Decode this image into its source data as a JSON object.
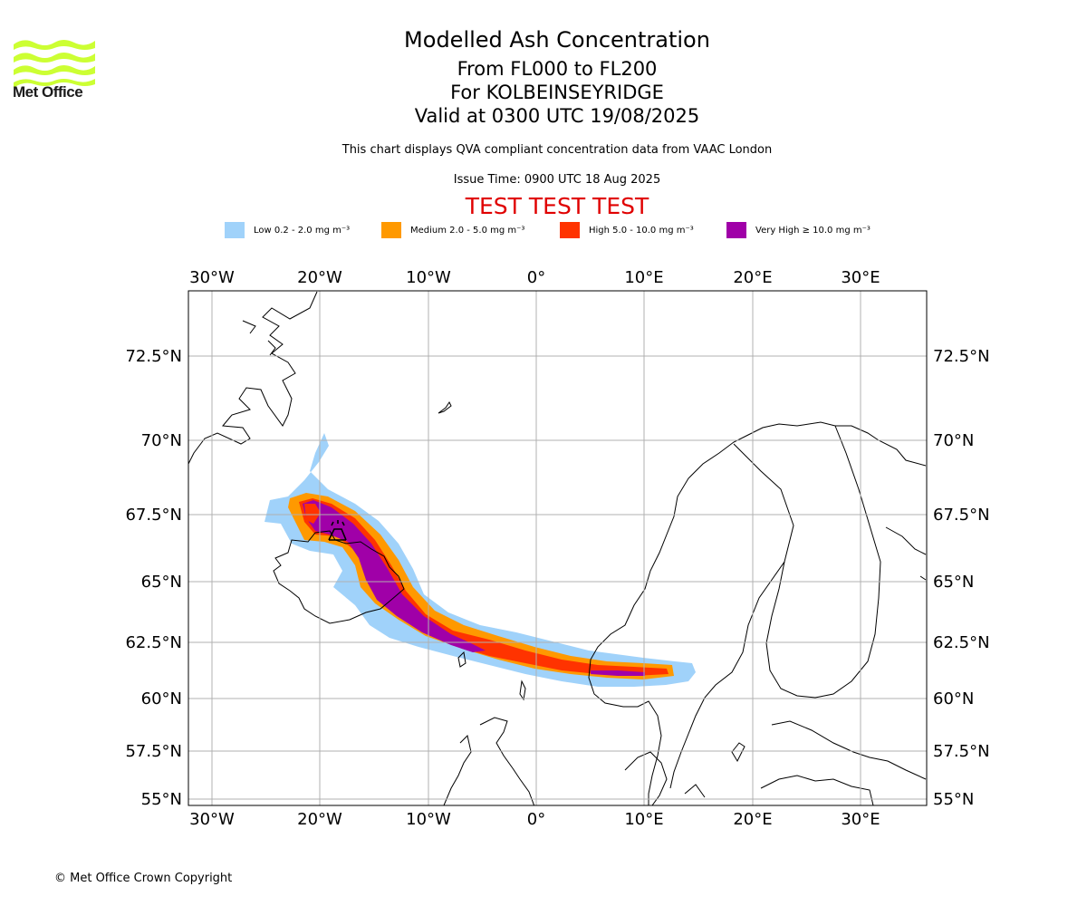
{
  "header": {
    "title": "Modelled Ash Concentration",
    "levels": "From FL000 to FL200",
    "location": "For KOLBEINSEYRIDGE",
    "valid": "Valid at 0300 UTC 19/08/2025",
    "subtitle": "This chart displays QVA compliant concentration data from VAAC London",
    "issue_time": "Issue Time: 0900 UTC 18 Aug 2025",
    "test_banner": "TEST TEST TEST"
  },
  "logo": {
    "text": "Met Office",
    "color": "#ccff33"
  },
  "legend": [
    {
      "label": "Low 0.2 - 2.0 mg m⁻³",
      "color": "#a0d2fa"
    },
    {
      "label": "Medium 2.0 - 5.0 mg m⁻³",
      "color": "#ff9900"
    },
    {
      "label": "High 5.0 - 10.0 mg m⁻³",
      "color": "#ff3300"
    },
    {
      "label": "Very High ≥ 10.0 mg m⁻³",
      "color": "#a000a8"
    }
  ],
  "map": {
    "lon_ticks": [
      "30°W",
      "20°W",
      "10°W",
      "0°",
      "10°E",
      "20°E",
      "30°E"
    ],
    "lat_ticks": [
      "72.5°N",
      "70°N",
      "67.5°N",
      "65°N",
      "62.5°N",
      "60°N",
      "57.5°N",
      "55°N"
    ],
    "volcano": "volcano-icon"
  },
  "footer": {
    "copyright": "© Met Office Crown Copyright"
  }
}
